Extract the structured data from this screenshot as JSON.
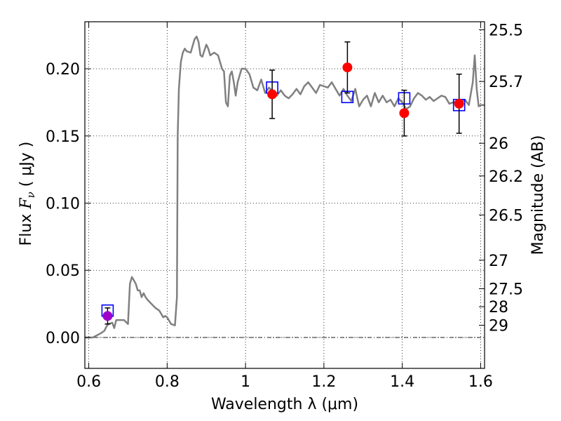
{
  "chart_data": {
    "type": "scatter",
    "xlabel": "Wavelength  λ (μm)",
    "ylabel_left": {
      "prefix": "Flux  ",
      "symbol": "F",
      "subscript": "ν",
      "units": "  ( μJy )"
    },
    "ylabel_right": "Magnitude (AB)",
    "xlim": [
      0.59,
      1.61
    ],
    "ylim": [
      -0.023,
      0.235
    ],
    "grid": true,
    "x_ticks": [
      {
        "value": 0.6,
        "label": "0.6"
      },
      {
        "value": 0.8,
        "label": "0.8"
      },
      {
        "value": 1.0,
        "label": "1"
      },
      {
        "value": 1.2,
        "label": "1.2"
      },
      {
        "value": 1.4,
        "label": "1.4"
      },
      {
        "value": 1.6,
        "label": "1.6"
      }
    ],
    "y_ticks": [
      {
        "value": 0.0,
        "label": "0.00"
      },
      {
        "value": 0.05,
        "label": "0.05"
      },
      {
        "value": 0.1,
        "label": "0.10"
      },
      {
        "value": 0.15,
        "label": "0.15"
      },
      {
        "value": 0.2,
        "label": "0.20"
      }
    ],
    "mag_ticks": [
      {
        "value": 25.5,
        "label": "25.5"
      },
      {
        "value": 25.7,
        "label": "25.7"
      },
      {
        "value": 26.0,
        "label": "26"
      },
      {
        "value": 26.2,
        "label": "26.2"
      },
      {
        "value": 26.5,
        "label": "26.5"
      },
      {
        "value": 27.0,
        "label": "27"
      },
      {
        "value": 27.5,
        "label": "27.5"
      },
      {
        "value": 28.0,
        "label": "28"
      },
      {
        "value": 29.0,
        "label": "29"
      }
    ],
    "zero_line": 0.0,
    "series": [
      {
        "kind": "line",
        "color": "#808080",
        "x": [
          0.59,
          0.61,
          0.63,
          0.64,
          0.645,
          0.65,
          0.66,
          0.665,
          0.67,
          0.68,
          0.69,
          0.7,
          0.705,
          0.71,
          0.72,
          0.725,
          0.73,
          0.735,
          0.74,
          0.745,
          0.75,
          0.76,
          0.77,
          0.78,
          0.79,
          0.795,
          0.8,
          0.81,
          0.82,
          0.825,
          0.827,
          0.83,
          0.835,
          0.84,
          0.845,
          0.85,
          0.86,
          0.87,
          0.875,
          0.88,
          0.885,
          0.89,
          0.9,
          0.905,
          0.91,
          0.92,
          0.93,
          0.94,
          0.945,
          0.95,
          0.955,
          0.96,
          0.965,
          0.97,
          0.975,
          0.98,
          0.99,
          1.0,
          1.01,
          1.02,
          1.03,
          1.04,
          1.05,
          1.06,
          1.07,
          1.08,
          1.09,
          1.1,
          1.11,
          1.12,
          1.13,
          1.14,
          1.15,
          1.16,
          1.17,
          1.18,
          1.19,
          1.2,
          1.21,
          1.22,
          1.23,
          1.24,
          1.25,
          1.26,
          1.27,
          1.28,
          1.29,
          1.3,
          1.31,
          1.32,
          1.33,
          1.34,
          1.35,
          1.36,
          1.37,
          1.38,
          1.39,
          1.4,
          1.41,
          1.42,
          1.43,
          1.44,
          1.45,
          1.46,
          1.47,
          1.48,
          1.49,
          1.5,
          1.51,
          1.52,
          1.53,
          1.54,
          1.55,
          1.56,
          1.57,
          1.58,
          1.585,
          1.59,
          1.595,
          1.6,
          1.61
        ],
        "y": [
          0.0,
          0.0,
          0.003,
          0.005,
          0.008,
          0.01,
          0.011,
          0.007,
          0.013,
          0.013,
          0.013,
          0.01,
          0.04,
          0.045,
          0.04,
          0.035,
          0.035,
          0.03,
          0.033,
          0.03,
          0.028,
          0.025,
          0.022,
          0.02,
          0.015,
          0.016,
          0.015,
          0.01,
          0.009,
          0.03,
          0.15,
          0.185,
          0.205,
          0.212,
          0.215,
          0.213,
          0.212,
          0.222,
          0.224,
          0.22,
          0.21,
          0.209,
          0.218,
          0.215,
          0.21,
          0.212,
          0.21,
          0.2,
          0.198,
          0.175,
          0.172,
          0.195,
          0.198,
          0.19,
          0.18,
          0.19,
          0.2,
          0.2,
          0.196,
          0.186,
          0.184,
          0.192,
          0.182,
          0.186,
          0.183,
          0.18,
          0.184,
          0.18,
          0.178,
          0.181,
          0.185,
          0.181,
          0.187,
          0.19,
          0.186,
          0.182,
          0.188,
          0.187,
          0.186,
          0.19,
          0.185,
          0.18,
          0.185,
          0.18,
          0.176,
          0.185,
          0.172,
          0.177,
          0.18,
          0.172,
          0.182,
          0.175,
          0.18,
          0.175,
          0.177,
          0.172,
          0.178,
          0.175,
          0.17,
          0.172,
          0.178,
          0.182,
          0.18,
          0.177,
          0.179,
          0.176,
          0.178,
          0.18,
          0.179,
          0.174,
          0.175,
          0.176,
          0.175,
          0.177,
          0.173,
          0.19,
          0.21,
          0.185,
          0.172,
          0.173,
          0.173
        ]
      },
      {
        "kind": "squares",
        "color": "#0000ff",
        "x": [
          0.648,
          1.068,
          1.26,
          1.405,
          1.545
        ],
        "y": [
          0.02,
          0.186,
          0.179,
          0.178,
          0.173
        ]
      },
      {
        "kind": "points",
        "color": "#ff0000",
        "x": [
          1.068,
          1.26,
          1.405,
          1.545
        ],
        "y": [
          0.181,
          0.201,
          0.167,
          0.174
        ],
        "err": [
          0.018,
          0.019,
          0.017,
          0.022
        ]
      },
      {
        "kind": "points",
        "color": "#a000c8",
        "x": [
          0.648
        ],
        "y": [
          0.016
        ],
        "err": [
          0.006
        ]
      }
    ]
  }
}
